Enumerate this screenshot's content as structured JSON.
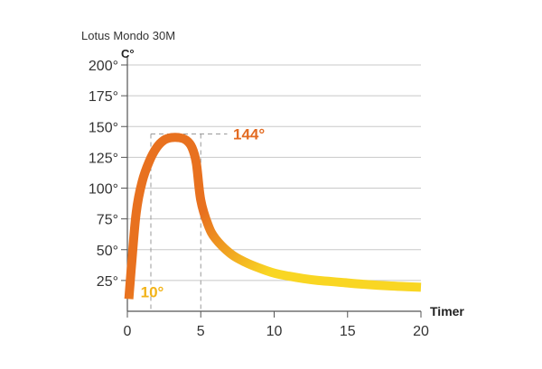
{
  "chart_data": {
    "type": "line",
    "title": "Lotus Mondo 30M",
    "ylabel": "C°",
    "xlabel": "Timer",
    "xlim": [
      0,
      20
    ],
    "ylim": [
      0,
      200
    ],
    "x_ticks": [
      0,
      5,
      10,
      15,
      20
    ],
    "y_ticks": [
      25,
      50,
      75,
      100,
      125,
      150,
      175,
      200
    ],
    "y_tick_labels": [
      "25°",
      "50°",
      "75°",
      "100°",
      "125°",
      "150°",
      "175°",
      "200°"
    ],
    "grid": "horizontal",
    "series": [
      {
        "x": [
          0.1,
          0.3,
          0.6,
          1.0,
          1.5,
          2.0,
          2.5,
          3.0,
          3.5,
          4.0,
          4.4,
          4.7,
          5.0,
          5.5,
          6.0,
          7.0,
          8.0,
          9.0,
          10.0,
          11.0,
          12.0,
          13.0,
          14.0,
          15.0,
          16.0,
          17.0,
          18.0,
          19.0,
          20.0
        ],
        "y": [
          10,
          40,
          80,
          105,
          122,
          133,
          139,
          141,
          141,
          139,
          133,
          120,
          90,
          70,
          59,
          47,
          40,
          35,
          31,
          28.5,
          26.5,
          25,
          24,
          23,
          22,
          21.2,
          20.5,
          20,
          19.5
        ]
      }
    ],
    "color_start": "#e8711f",
    "color_end": "#f9d623",
    "annotations": [
      {
        "text": "144°",
        "color": "#e36b22",
        "x": 7.2,
        "y": 144
      },
      {
        "text": "10°",
        "color": "#f2b319",
        "x": 0.9,
        "y": 10
      }
    ],
    "guides": {
      "x1": 1.6,
      "x2": 5.0,
      "y_peak": 144
    }
  }
}
